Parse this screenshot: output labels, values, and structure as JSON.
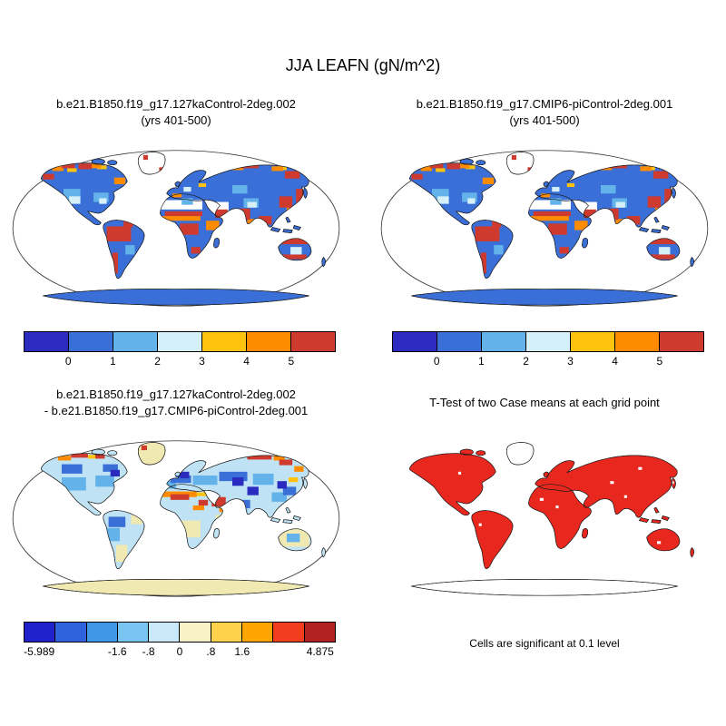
{
  "figure": {
    "title": "JJA LEAFN (gN/m^2)",
    "caption_significance": "Cells are significant at 0.1 level"
  },
  "panels": [
    {
      "title_line1": "b.e21.B1850.f19_g17.127kaControl-2deg.002",
      "title_line2": "(yrs 401-500)"
    },
    {
      "title_line1": "b.e21.B1850.f19_g17.CMIP6-piControl-2deg.001",
      "title_line2": "(yrs 401-500)"
    },
    {
      "title_line1": "b.e21.B1850.f19_g17.127kaControl-2deg.002",
      "title_line2": "- b.e21.B1850.f19_g17.CMIP6-piControl-2deg.001"
    },
    {
      "title_line1": "T-Test of two Case means at each grid point",
      "title_line2": ""
    }
  ],
  "colorbars": {
    "case": {
      "colors": [
        "#2b2bbf",
        "#3a6fd8",
        "#63b2ea",
        "#d6f0fa",
        "#ffc20e",
        "#ff8c00",
        "#cf3a2e"
      ],
      "ticks": [
        {
          "label": "0",
          "pos": 0.143
        },
        {
          "label": "1",
          "pos": 0.286
        },
        {
          "label": "2",
          "pos": 0.429
        },
        {
          "label": "3",
          "pos": 0.571
        },
        {
          "label": "4",
          "pos": 0.714
        },
        {
          "label": "5",
          "pos": 0.857
        }
      ]
    },
    "diff": {
      "colors": [
        "#2222cc",
        "#2f62dd",
        "#3f97e8",
        "#79c4f0",
        "#c9e9f8",
        "#f7f2c8",
        "#ffd24d",
        "#ffa500",
        "#f23d1f",
        "#b22222"
      ],
      "ticks": [
        {
          "label": "-5.989",
          "pos": 0.05
        },
        {
          "label": "-1.6",
          "pos": 0.3
        },
        {
          "label": "-.8",
          "pos": 0.4
        },
        {
          "label": "0",
          "pos": 0.5
        },
        {
          "label": ".8",
          "pos": 0.6
        },
        {
          "label": "1.6",
          "pos": 0.7
        },
        {
          "label": "4.875",
          "pos": 0.95
        }
      ]
    }
  },
  "palette": {
    "deep_blue": "#2b2bbf",
    "blue": "#3a6fd8",
    "sky": "#63b2ea",
    "pale_blue": "#d6f0fa",
    "gold": "#ffc20e",
    "orange": "#ff8c00",
    "red": "#cf3a2e",
    "cream": "#f0e9b2",
    "diff_base": "#bfe3f4",
    "sig_red": "#e8281e"
  },
  "chart_data": [
    {
      "type": "heatmap",
      "title": "b.e21.B1850.f19_g17.127kaControl-2deg.002 (yrs 401-500)",
      "variable": "JJA LEAFN (gN/m^2)",
      "projection": "robinson-world-map",
      "colorbar_ticks": [
        0,
        1,
        2,
        3,
        4,
        5
      ],
      "colorbar_colors": [
        "#2b2bbf",
        "#3a6fd8",
        "#63b2ea",
        "#d6f0fa",
        "#ffc20e",
        "#ff8c00",
        "#cf3a2e"
      ],
      "description": "Land grid cells mostly blue (0-1) with red/orange high values over Amazon, central Africa, India, SE Asia, east China, Arctic coasts and Australia rim; deserts white (no data)"
    },
    {
      "type": "heatmap",
      "title": "b.e21.B1850.f19_g17.CMIP6-piControl-2deg.001 (yrs 401-500)",
      "variable": "JJA LEAFN (gN/m^2)",
      "projection": "robinson-world-map",
      "colorbar_ticks": [
        0,
        1,
        2,
        3,
        4,
        5
      ],
      "colorbar_colors": [
        "#2b2bbf",
        "#3a6fd8",
        "#63b2ea",
        "#d6f0fa",
        "#ffc20e",
        "#ff8c00",
        "#cf3a2e"
      ],
      "description": "Very similar spatial pattern to case 1"
    },
    {
      "type": "heatmap",
      "title": "b.e21.B1850.f19_g17.127kaControl-2deg.002 - b.e21.B1850.f19_g17.CMIP6-piControl-2deg.001",
      "variable": "difference JJA LEAFN (gN/m^2)",
      "projection": "robinson-world-map",
      "colorbar_ticks": [
        -5.989,
        -1.6,
        -0.8,
        0,
        0.8,
        1.6,
        4.875
      ],
      "colorbar_colors": [
        "#2222cc",
        "#2f62dd",
        "#3f97e8",
        "#79c4f0",
        "#c9e9f8",
        "#f7f2c8",
        "#ffd24d",
        "#ffa500",
        "#f23d1f",
        "#b22222"
      ],
      "description": "Mostly light blue (small negative) over mid/high latitudes, orange/red band over Sahara, Middle East and Arctic coasts, pale yellow over southern Africa, Australia and Antarctica"
    },
    {
      "type": "heatmap",
      "title": "T-Test of two Case means at each grid point",
      "note": "Cells are significant at 0.1 level",
      "significant_color": "#e8281e",
      "description": "Nearly all vegetated land cells shaded red (significant); Greenland and Antarctica unshaded"
    }
  ]
}
